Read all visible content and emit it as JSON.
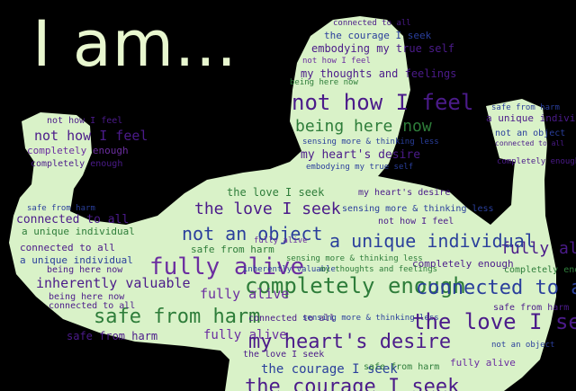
{
  "headline": "I am...",
  "colors": {
    "background": "#000000",
    "silhouette": "#d9f2c8",
    "headline": "#e8f7cf",
    "purple": "#4b1b8a",
    "green": "#2e7d3a",
    "blue": "#2a3f9c",
    "violet": "#6b2ea0"
  },
  "phrases": {
    "p01": "connected to all",
    "p02": "the courage I seek",
    "p03": "embodying my true self",
    "p04": "not how I feel",
    "p05": "my thoughts and feelings",
    "p06": "being here now",
    "p07": "not how I feel",
    "p08": "being here now",
    "p09": "sensing more & thinking less",
    "p10": "my heart's desire",
    "p11": "embodying my true self",
    "p12": "not how I feel",
    "p13": "not how I feel",
    "p14": "completely enough",
    "p15": "completely enough",
    "p16": "safe from harm",
    "p17": "a unique individual",
    "p18": "connected to all",
    "p19": "not an object",
    "p20": "fully alive",
    "p21": "completely enough",
    "p22": "the love I seek",
    "p23": "the love I seek",
    "p24": "my heart's desire",
    "p25": "sensing more & thinking less",
    "p26": "not how I feel",
    "p27": "not an object",
    "p28": "a unique individual",
    "p29": "fully alive",
    "p30": "safe from harm",
    "p31": "connected to all",
    "p32": "a unique individual",
    "p33": "being here now",
    "p34": "fully alive",
    "p35": "inherently valuable",
    "p36": "sensing more & thinking less",
    "p37": "completely enough",
    "p38": "inherently valuable",
    "p39": "completely enough",
    "p40": "my thoughts and feelings",
    "p41": "connected to all",
    "p42": "being here now",
    "p43": "safe from harm",
    "p44": "fully alive",
    "p45": "connected to all",
    "p46": "safe from harm",
    "p47": "connected to all",
    "p48": "sensing more & thinking less",
    "p49": "the love I seek",
    "p50": "fully alive",
    "p51": "my heart's desire",
    "p52": "not an object",
    "p53": "safe from harm",
    "p54": "the love I seek",
    "p55": "the courage I seek",
    "p56": "the courage I seek",
    "p57": "fully alive",
    "p58": "safe from harm",
    "p59": "a unique individual"
  }
}
